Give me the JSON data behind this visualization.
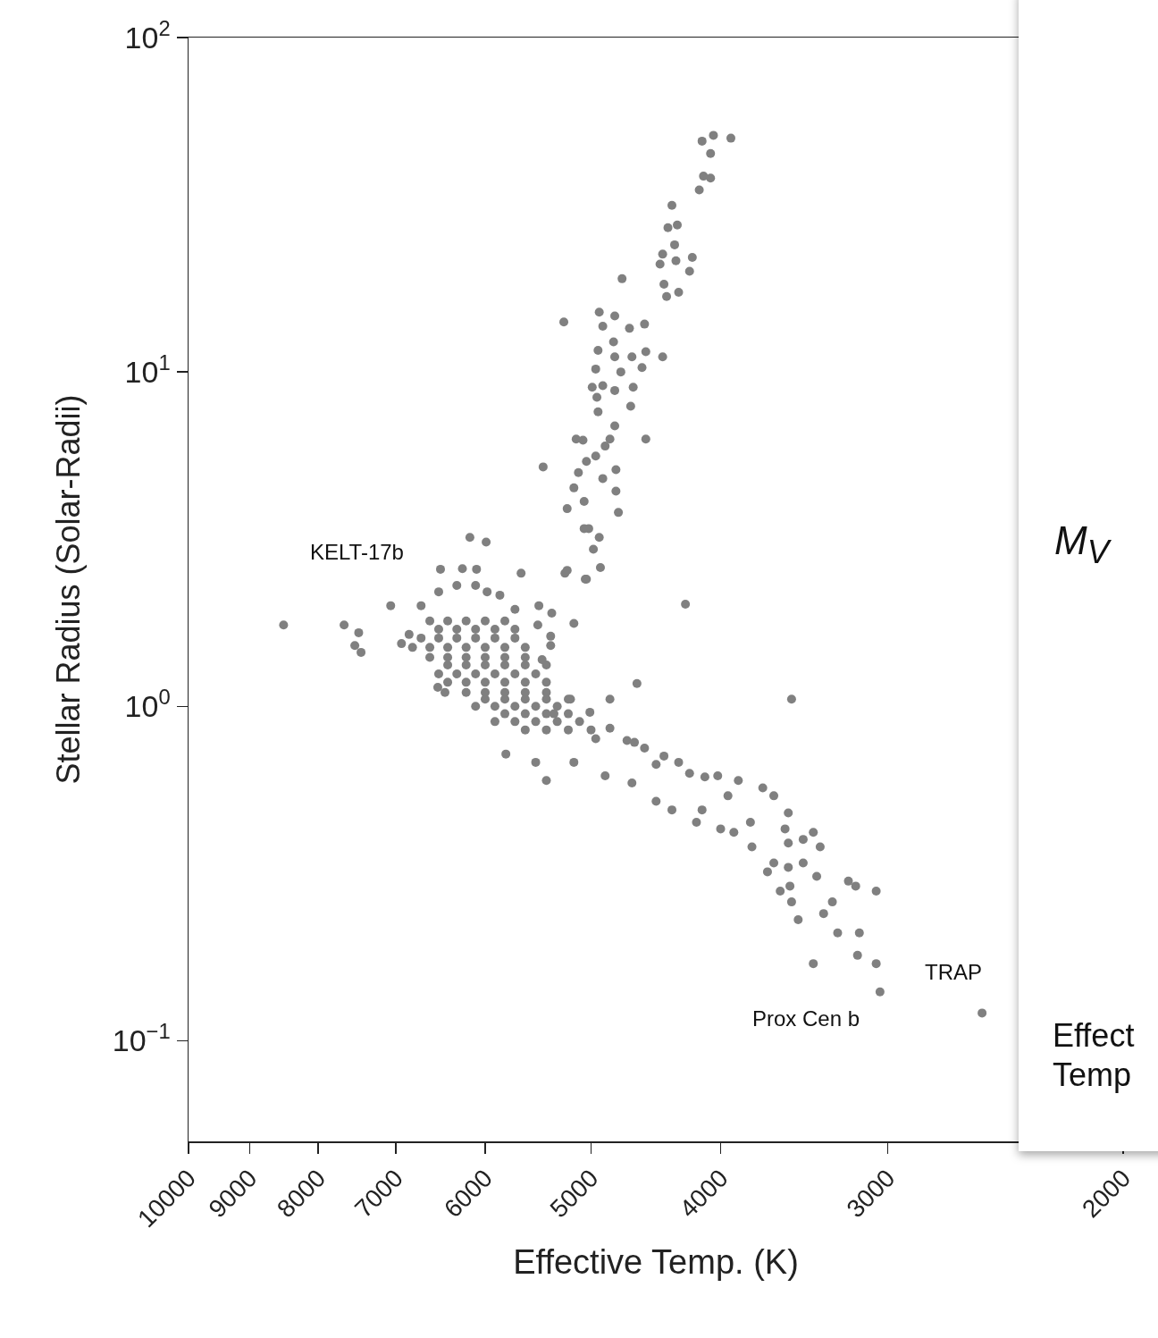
{
  "chart_data": [
    {
      "type": "scatter",
      "xlabel": "Effective Temp. (K)",
      "ylabel": "Stellar Radius (Solar-Radii)",
      "log": "xy",
      "grid": false,
      "marker": "circle",
      "color": "#808080",
      "xlim": [
        10000,
        2000
      ],
      "ylim": [
        0.05,
        100
      ],
      "xticks": [
        10000,
        9000,
        8000,
        7000,
        6000,
        5000,
        4000,
        3000,
        2000
      ],
      "yticks": [
        {
          "value": 0.1,
          "label": "10$^{−1}$"
        },
        {
          "value": 1,
          "label": "10$^{0}$"
        },
        {
          "value": 10,
          "label": "10$^{1}$"
        },
        {
          "value": 100,
          "label": "10$^{2}$"
        }
      ],
      "x": [
        4050,
        3930,
        4130,
        4070,
        4120,
        4070,
        4150,
        4350,
        4380,
        4310,
        4330,
        4420,
        4320,
        4200,
        4220,
        4440,
        4410,
        4390,
        4300,
        4740,
        5240,
        4930,
        4800,
        4900,
        4680,
        4560,
        4810,
        4940,
        4550,
        4420,
        4660,
        4800,
        4960,
        4750,
        4580,
        4990,
        4900,
        4800,
        4650,
        4950,
        4670,
        4940,
        4800,
        5130,
        5070,
        4550,
        4840,
        4880,
        4960,
        5430,
        4790,
        5040,
        5110,
        4900,
        5150,
        5060,
        5020,
        5210,
        4790,
        4770,
        4930,
        5060,
        4980,
        4920,
        5040,
        5210,
        8490,
        7650,
        7460,
        7510,
        7430,
        7060,
        6930,
        6840,
        6160,
        5990,
        6480,
        6240,
        6090,
        5640,
        5230,
        5050,
        5150,
        5470,
        5350,
        5480,
        5360,
        5360,
        5440,
        6510,
        6430,
        5180,
        5790,
        5500,
        5400,
        6700,
        6500,
        6300,
        6100,
        5980,
        5850,
        5700,
        4250,
        6600,
        6400,
        6200,
        6000,
        5800,
        6700,
        6500,
        6300,
        6100,
        5900,
        5700,
        6600,
        6400,
        6200,
        6000,
        5800,
        5600,
        6500,
        6300,
        6100,
        5900,
        5700,
        5500,
        6200,
        6000,
        5800,
        5600,
        5400,
        6100,
        5900,
        5700,
        5500,
        5300,
        5900,
        5700,
        5500,
        5300,
        5100,
        5600,
        5400,
        5200,
        5000,
        5010,
        4840,
        4640,
        4410,
        4300,
        4220,
        4110,
        4020,
        3880,
        3720,
        3650,
        3560,
        3950,
        4130,
        4350,
        4470,
        4170,
        4000,
        3910,
        3800,
        5150,
        4880,
        4660,
        4620,
        4840,
        3540,
        4960,
        4470,
        5330,
        4700,
        4560,
        3580,
        3410,
        3560,
        3470,
        3370,
        3790,
        3650,
        3690,
        3560,
        3470,
        3390,
        3210,
        3170,
        3060,
        3610,
        3550,
        3540,
        3300,
        3500,
        3350,
        3270,
        3150,
        3160,
        3410,
        3060,
        3040,
        2550,
        6500,
        6300,
        6100,
        5900,
        5700,
        6800,
        6600,
        6400,
        6200,
        6000,
        5800,
        5600,
        6400,
        6200,
        6000,
        5800,
        5600,
        5400,
        6400,
        6200,
        6000,
        5800,
        5600,
        5400,
        6000,
        5800,
        5600,
        5400,
        5200,
        5800,
        5600,
        5400,
        5200
      ],
      "values": [
        51,
        50,
        49,
        45,
        38.5,
        38,
        35,
        31.5,
        27,
        27.5,
        24,
        22.5,
        21.5,
        22,
        20,
        21,
        18.3,
        16.8,
        17.3,
        19,
        14.1,
        15.1,
        14.7,
        13.7,
        13.5,
        13.9,
        12.3,
        11.6,
        11.5,
        11.1,
        11.1,
        11.1,
        10.2,
        10,
        10.3,
        9,
        9.1,
        8.8,
        9,
        8.4,
        7.9,
        7.6,
        6.9,
        6.3,
        6.25,
        6.3,
        6.3,
        6,
        5.6,
        5.2,
        5.1,
        5.4,
        5,
        4.8,
        4.5,
        4.1,
        3.4,
        3.9,
        4.4,
        3.8,
        3.2,
        3.4,
        2.95,
        2.6,
        2.4,
        2.55,
        1.75,
        1.75,
        1.66,
        1.52,
        1.45,
        2,
        1.54,
        1.64,
        3.2,
        3.1,
        2.57,
        2.58,
        2.57,
        2.5,
        2.5,
        2.4,
        1.77,
        2,
        1.9,
        1.75,
        1.62,
        1.52,
        1.38,
        1.14,
        1.1,
        1.05,
        0.72,
        0.68,
        0.6,
        2,
        2.2,
        2.3,
        2.3,
        2.2,
        2.15,
        1.95,
        2.02,
        1.8,
        1.8,
        1.8,
        1.8,
        1.8,
        1.6,
        1.6,
        1.6,
        1.6,
        1.6,
        1.6,
        1.4,
        1.4,
        1.4,
        1.4,
        1.4,
        1.4,
        1.25,
        1.25,
        1.25,
        1.25,
        1.25,
        1.25,
        1.1,
        1.1,
        1.1,
        1.1,
        1.1,
        1,
        1,
        1,
        1,
        1,
        0.9,
        0.9,
        0.9,
        0.9,
        0.9,
        0.85,
        0.85,
        0.85,
        0.85,
        0.96,
        0.86,
        0.78,
        0.71,
        0.68,
        0.63,
        0.615,
        0.62,
        0.6,
        0.57,
        0.54,
        0.48,
        0.54,
        0.49,
        0.49,
        0.52,
        0.45,
        0.43,
        0.42,
        0.45,
        0.68,
        0.62,
        0.59,
        1.17,
        1.05,
        1.05,
        0.8,
        0.67,
        0.95,
        0.79,
        0.75,
        0.43,
        0.42,
        0.39,
        0.4,
        0.38,
        0.38,
        0.34,
        0.32,
        0.33,
        0.34,
        0.31,
        0.3,
        0.29,
        0.28,
        0.28,
        0.29,
        0.26,
        0.26,
        0.23,
        0.24,
        0.21,
        0.21,
        0.18,
        0.17,
        0.17,
        0.14,
        0.121,
        1.7,
        1.7,
        1.7,
        1.7,
        1.7,
        1.5,
        1.5,
        1.5,
        1.5,
        1.5,
        1.5,
        1.5,
        1.33,
        1.33,
        1.33,
        1.33,
        1.33,
        1.33,
        1.18,
        1.18,
        1.18,
        1.18,
        1.18,
        1.18,
        1.05,
        1.05,
        1.05,
        1.05,
        1.05,
        0.95,
        0.95,
        0.95,
        0.95
      ],
      "annotations": [
        "KELT-17b",
        "Prox Cen b",
        "TRAP"
      ]
    },
    {
      "type": "other",
      "annotations": [
        "M$_{V}$",
        "Effect",
        "Temp"
      ]
    }
  ]
}
